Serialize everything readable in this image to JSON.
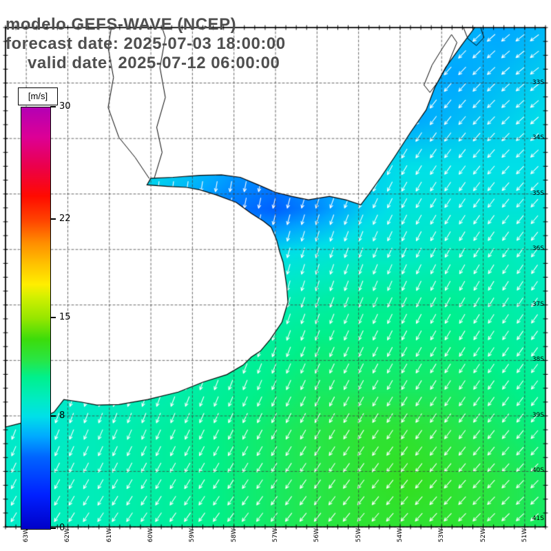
{
  "title": {
    "line1": "modelo GEFS-WAVE (NCEP)",
    "line2": "forecast date: 2025-07-03 18:00:00",
    "line3": "valid date: 2025-07-12 06:00:00",
    "color": "#4f4f4f"
  },
  "colorbar": {
    "unit": "[m/s]",
    "min": 0,
    "max": 30,
    "tick_values": [
      30,
      22,
      15,
      8,
      0
    ],
    "stops": [
      [
        0.0,
        "#0000c8"
      ],
      [
        0.08,
        "#0020ff"
      ],
      [
        0.17,
        "#0064ff"
      ],
      [
        0.22,
        "#00aaff"
      ],
      [
        0.267,
        "#00e0e8"
      ],
      [
        0.31,
        "#00ecc0"
      ],
      [
        0.36,
        "#00f08c"
      ],
      [
        0.4,
        "#28e646"
      ],
      [
        0.45,
        "#3cdc0a"
      ],
      [
        0.5,
        "#96e600"
      ],
      [
        0.55,
        "#d2f000"
      ],
      [
        0.58,
        "#ffee00"
      ],
      [
        0.63,
        "#ffc000"
      ],
      [
        0.68,
        "#ff8c00"
      ],
      [
        0.73,
        "#ff4600"
      ],
      [
        0.79,
        "#ff0a00"
      ],
      [
        0.86,
        "#eb004b"
      ],
      [
        0.93,
        "#dc0096"
      ],
      [
        1.0,
        "#b400b4"
      ]
    ]
  },
  "map": {
    "lon_range_w": [
      63.5,
      50.5
    ],
    "lat_range_s": [
      32,
      41
    ],
    "lon_ticks": [
      {
        "deg": 63,
        "label": "63W"
      },
      {
        "deg": 62,
        "label": "62W"
      },
      {
        "deg": 61,
        "label": "61W"
      },
      {
        "deg": 60,
        "label": "60W"
      },
      {
        "deg": 59,
        "label": "59W"
      },
      {
        "deg": 58,
        "label": "58W"
      },
      {
        "deg": 57,
        "label": "57W"
      },
      {
        "deg": 56,
        "label": "56W"
      },
      {
        "deg": 55,
        "label": "55W"
      },
      {
        "deg": 54,
        "label": "54W"
      },
      {
        "deg": 53,
        "label": "53W"
      },
      {
        "deg": 52,
        "label": "52W"
      },
      {
        "deg": 51,
        "label": "51W"
      }
    ],
    "lat_ticks": [
      {
        "deg": 33,
        "label": "33S"
      },
      {
        "deg": 34,
        "label": "34S"
      },
      {
        "deg": 35,
        "label": "35S"
      },
      {
        "deg": 36,
        "label": "36S"
      },
      {
        "deg": 37,
        "label": "37S"
      },
      {
        "deg": 38,
        "label": "38S"
      },
      {
        "deg": 39,
        "label": "39S"
      },
      {
        "deg": 40,
        "label": "40S"
      },
      {
        "deg": 41,
        "label": "41S"
      }
    ]
  },
  "chart_data": {
    "type": "heatmap",
    "title": "GEFS-WAVE (NCEP) wind speed field with wind direction arrows",
    "units": "m/s",
    "grid_on": true,
    "x_tick_labels": [
      "63W",
      "62W",
      "61W",
      "60W",
      "59W",
      "58W",
      "57W",
      "56W",
      "55W",
      "54W",
      "53W",
      "52W",
      "51W"
    ],
    "y_tick_labels": [
      "33S",
      "34S",
      "35S",
      "36S",
      "37S",
      "38S",
      "39S",
      "40S",
      "41S"
    ],
    "wind_speed_grid": [
      [
        8,
        8,
        8,
        8,
        8,
        8,
        8,
        8,
        8,
        7.5,
        7,
        6.5,
        7
      ],
      [
        8,
        8,
        8,
        8,
        8,
        8,
        8,
        8,
        7.5,
        7,
        6.5,
        7,
        7.5
      ],
      [
        8,
        8,
        8,
        8,
        8,
        7.5,
        7.5,
        7.5,
        7,
        6.5,
        7,
        7.5,
        8
      ],
      [
        8,
        8,
        8,
        8,
        7.5,
        6.5,
        6,
        6.5,
        7.5,
        8,
        8,
        8,
        8
      ],
      [
        8,
        8,
        8,
        7.5,
        6.5,
        5.5,
        5,
        6,
        7.5,
        8.5,
        8.5,
        8.5,
        8.5
      ],
      [
        8,
        8,
        8,
        8,
        7.5,
        7.5,
        8,
        8.5,
        9,
        9,
        9.5,
        9.5,
        9
      ],
      [
        8.5,
        8.5,
        8.5,
        8.5,
        8.5,
        9,
        9.5,
        10,
        10.5,
        10.5,
        10.5,
        10,
        9.5
      ],
      [
        8.5,
        8.5,
        8.5,
        9,
        9.5,
        10,
        10.5,
        11,
        11,
        11,
        11,
        10.5,
        10
      ],
      [
        8.5,
        9,
        9,
        9.5,
        10,
        10.5,
        11,
        11.5,
        11.5,
        11.5,
        11.5,
        11,
        10.5
      ],
      [
        9,
        9,
        9.5,
        10,
        10.5,
        11,
        11.5,
        12,
        12.5,
        12.5,
        12,
        11.5,
        11
      ],
      [
        9,
        9.5,
        9.5,
        10,
        10.5,
        11,
        11.5,
        12,
        12.5,
        13,
        12.5,
        12,
        11.5
      ],
      [
        9,
        9.5,
        9.5,
        10,
        10.5,
        11,
        11.5,
        12,
        12.5,
        12.5,
        12.5,
        12,
        11.5
      ]
    ],
    "wind_direction_toward_deg_grid": [
      [
        190,
        188,
        195,
        220,
        235
      ],
      [
        185,
        185,
        192,
        212,
        228
      ],
      [
        188,
        188,
        195,
        205,
        215
      ],
      [
        198,
        200,
        205,
        212,
        218
      ],
      [
        212,
        215,
        218,
        222,
        228
      ]
    ],
    "arrow_color": "#ffffff",
    "land_color": "#ffffff",
    "coastline_color": "#000000",
    "coastline": [
      [
        0.869,
        0.0
      ],
      [
        0.845,
        0.035
      ],
      [
        0.815,
        0.08
      ],
      [
        0.795,
        0.12
      ],
      [
        0.779,
        0.165
      ],
      [
        0.75,
        0.21
      ],
      [
        0.72,
        0.26
      ],
      [
        0.695,
        0.3
      ],
      [
        0.672,
        0.335
      ],
      [
        0.658,
        0.355
      ],
      [
        0.63,
        0.345
      ],
      [
        0.6,
        0.338
      ],
      [
        0.561,
        0.345
      ],
      [
        0.53,
        0.338
      ],
      [
        0.5,
        0.33
      ],
      [
        0.468,
        0.315
      ],
      [
        0.435,
        0.3
      ],
      [
        0.4,
        0.295
      ],
      [
        0.36,
        0.296
      ],
      [
        0.31,
        0.3
      ],
      [
        0.269,
        0.302
      ],
      [
        0.262,
        0.315
      ],
      [
        0.3,
        0.318
      ],
      [
        0.335,
        0.32
      ],
      [
        0.36,
        0.325
      ],
      [
        0.39,
        0.335
      ],
      [
        0.427,
        0.35
      ],
      [
        0.455,
        0.372
      ],
      [
        0.478,
        0.388
      ],
      [
        0.492,
        0.4
      ],
      [
        0.502,
        0.425
      ],
      [
        0.508,
        0.45
      ],
      [
        0.514,
        0.47
      ],
      [
        0.517,
        0.49
      ],
      [
        0.521,
        0.52
      ],
      [
        0.523,
        0.55
      ],
      [
        0.512,
        0.59
      ],
      [
        0.49,
        0.625
      ],
      [
        0.472,
        0.648
      ],
      [
        0.455,
        0.66
      ],
      [
        0.44,
        0.676
      ],
      [
        0.41,
        0.695
      ],
      [
        0.366,
        0.71
      ],
      [
        0.32,
        0.73
      ],
      [
        0.263,
        0.745
      ],
      [
        0.21,
        0.755
      ],
      [
        0.169,
        0.756
      ],
      [
        0.14,
        0.75
      ],
      [
        0.108,
        0.745
      ],
      [
        0.09,
        0.77
      ],
      [
        0.06,
        0.785
      ],
      [
        0.03,
        0.792
      ],
      [
        0.0,
        0.8
      ]
    ],
    "lagoons": [
      [
        [
          0.775,
          0.115
        ],
        [
          0.79,
          0.075
        ],
        [
          0.81,
          0.04
        ],
        [
          0.826,
          0.014
        ],
        [
          0.836,
          0.03
        ],
        [
          0.82,
          0.072
        ],
        [
          0.8,
          0.11
        ],
        [
          0.786,
          0.13
        ],
        [
          0.775,
          0.115
        ]
      ],
      [
        [
          0.848,
          0.0
        ],
        [
          0.856,
          0.022
        ],
        [
          0.872,
          0.036
        ],
        [
          0.886,
          0.02
        ],
        [
          0.88,
          0.0
        ]
      ]
    ],
    "rivers": [
      [
        [
          0.276,
          0.3
        ],
        [
          0.29,
          0.25
        ],
        [
          0.28,
          0.2
        ],
        [
          0.296,
          0.14
        ],
        [
          0.286,
          0.08
        ],
        [
          0.296,
          0.02
        ],
        [
          0.29,
          0.0
        ]
      ],
      [
        [
          0.266,
          0.302
        ],
        [
          0.24,
          0.26
        ],
        [
          0.21,
          0.22
        ],
        [
          0.19,
          0.16
        ],
        [
          0.2,
          0.1
        ],
        [
          0.19,
          0.04
        ],
        [
          0.196,
          0.0
        ]
      ]
    ]
  }
}
